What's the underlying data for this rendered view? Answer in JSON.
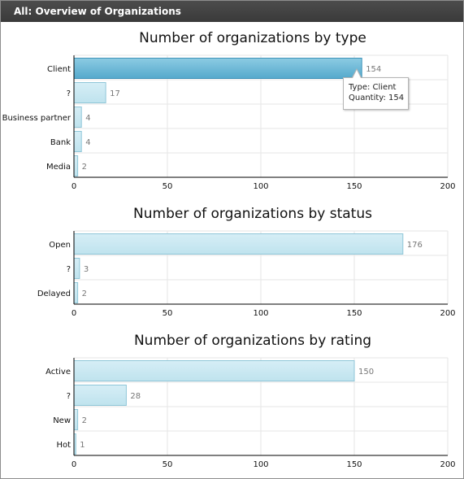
{
  "header": {
    "title": "All: Overview of Organizations"
  },
  "chart_data": [
    {
      "type": "bar",
      "orientation": "horizontal",
      "title": "Number of organizations by type",
      "categories": [
        "Client",
        "?",
        "Business partner",
        "Bank",
        "Media"
      ],
      "values": [
        154,
        17,
        4,
        4,
        2
      ],
      "xlim": [
        0,
        200
      ],
      "x_ticks": [
        0,
        50,
        100,
        150,
        200
      ],
      "highlighted": "Client",
      "grid": true
    },
    {
      "type": "bar",
      "orientation": "horizontal",
      "title": "Number of organizations by status",
      "categories": [
        "Open",
        "?",
        "Delayed"
      ],
      "values": [
        176,
        3,
        2
      ],
      "xlim": [
        0,
        200
      ],
      "x_ticks": [
        0,
        50,
        100,
        150,
        200
      ],
      "grid": true
    },
    {
      "type": "bar",
      "orientation": "horizontal",
      "title": "Number of organizations by rating",
      "categories": [
        "Active",
        "?",
        "New",
        "Hot"
      ],
      "values": [
        150,
        28,
        2,
        1
      ],
      "xlim": [
        0,
        200
      ],
      "x_ticks": [
        0,
        50,
        100,
        150,
        200
      ],
      "grid": true
    }
  ],
  "tooltip": {
    "line1": "Type: Client",
    "line2": "Quantity: 154"
  },
  "colors": {
    "bar": "#bfe3ee",
    "bar_border": "#8fc6d8",
    "bar_highlight": "#55a9cc",
    "grid": "#e6e6e6",
    "axis": "#000000",
    "value_label": "#777777"
  }
}
